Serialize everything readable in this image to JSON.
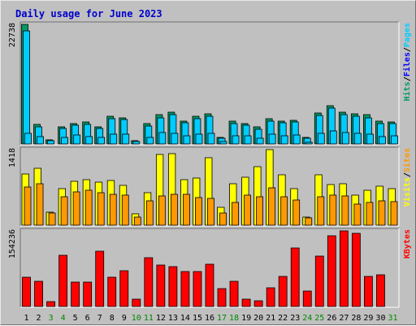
{
  "chart_data": {
    "type": "bar",
    "title": "Daily usage for June 2023",
    "x": [
      "1",
      "2",
      "3",
      "4",
      "5",
      "6",
      "7",
      "8",
      "9",
      "10",
      "11",
      "12",
      "13",
      "14",
      "15",
      "16",
      "17",
      "18",
      "19",
      "20",
      "21",
      "22",
      "23",
      "24",
      "25",
      "26",
      "27",
      "28",
      "29",
      "30",
      "31"
    ],
    "weekend_days": [
      "3",
      "4",
      "10",
      "11",
      "17",
      "18",
      "24",
      "25",
      "31"
    ],
    "colors": {
      "hits": "#009966",
      "files": "#00ccff",
      "pages": "#00ccff",
      "visits": "#ffff00",
      "sites": "#ff9900",
      "kbytes": "#ff0000",
      "weekday_label": "#000000",
      "weekend_label": "#008800",
      "title": "#0000cc",
      "hits_label": "#009966",
      "files_label": "#0000ff",
      "pages_label": "#00ccff",
      "visits_label": "#ffff00",
      "sites_label": "#ff9900",
      "kbytes_label": "#ff0000"
    },
    "panels": [
      {
        "id": "hits",
        "ytick": "22738",
        "ymax": 22738,
        "legend": [
          {
            "text": "Pages",
            "color_key": "pages_label"
          },
          {
            "text": "Files",
            "color_key": "files_label"
          },
          {
            "text": "Hits",
            "color_key": "hits_label"
          }
        ],
        "separator": "/",
        "series": [
          {
            "name": "Hits",
            "color_key": "hits",
            "values": [
              22738,
              3700,
              700,
              3300,
              3900,
              4100,
              3300,
              5200,
              5000,
              600,
              3800,
              5500,
              6000,
              4400,
              5300,
              5700,
              1300,
              4300,
              3900,
              3200,
              4800,
              4400,
              4500,
              1300,
              5900,
              7300,
              6000,
              5800,
              5500,
              4300,
              4200
            ]
          },
          {
            "name": "Files",
            "color_key": "files",
            "values": [
              21500,
              3300,
              600,
              3000,
              3500,
              3700,
              2900,
              4800,
              4700,
              500,
              3400,
              5000,
              5500,
              4000,
              4800,
              5200,
              1100,
              3900,
              3500,
              2800,
              4400,
              4000,
              4100,
              1100,
              5400,
              6800,
              5500,
              5300,
              5000,
              3900,
              3800
            ]
          },
          {
            "name": "Pages",
            "color_key": "pages",
            "values": [
              2000,
              1400,
              50,
              1200,
              1700,
              1400,
              1300,
              1800,
              1800,
              50,
              1300,
              2100,
              2000,
              1600,
              1900,
              2000,
              400,
              1600,
              1500,
              1100,
              1800,
              1500,
              1700,
              300,
              2000,
              2500,
              2100,
              2000,
              1800,
              1400,
              1500
            ]
          }
        ]
      },
      {
        "id": "visits",
        "ytick": "1418",
        "ymax": 1418,
        "legend": [
          {
            "text": "Sites",
            "color_key": "sites_label"
          },
          {
            "text": "Visits",
            "color_key": "visits_label"
          }
        ],
        "separator": "/",
        "series": [
          {
            "name": "Visits",
            "color_key": "visits",
            "values": [
              960,
              1070,
              250,
              690,
              830,
              860,
              810,
              840,
              740,
              210,
              610,
              1330,
              1340,
              860,
              880,
              1270,
              330,
              770,
              900,
              1100,
              1418,
              950,
              680,
              160,
              950,
              760,
              770,
              560,
              660,
              730,
              690
            ]
          },
          {
            "name": "Sites",
            "color_key": "sites",
            "values": [
              710,
              770,
              230,
              540,
              630,
              660,
              610,
              580,
              560,
              160,
              450,
              550,
              580,
              580,
              520,
              500,
              230,
              420,
              570,
              540,
              700,
              530,
              480,
              140,
              540,
              570,
              550,
              400,
              430,
              450,
              440
            ]
          }
        ]
      },
      {
        "id": "kbytes",
        "ytick": "154236",
        "ymax": 154236,
        "legend": [
          {
            "text": "KBytes",
            "color_key": "kbytes_label"
          }
        ],
        "separator": "",
        "series": [
          {
            "name": "KBytes",
            "color_key": "kbytes",
            "values": [
              60000,
              52000,
              10000,
              104000,
              50000,
              50000,
              112000,
              60000,
              73000,
              15000,
              100000,
              85000,
              82000,
              72000,
              71000,
              86000,
              37000,
              51000,
              15000,
              12000,
              38000,
              62000,
              119000,
              32000,
              102000,
              144000,
              154236,
              150000,
              62000,
              64000,
              0
            ]
          }
        ]
      }
    ]
  }
}
